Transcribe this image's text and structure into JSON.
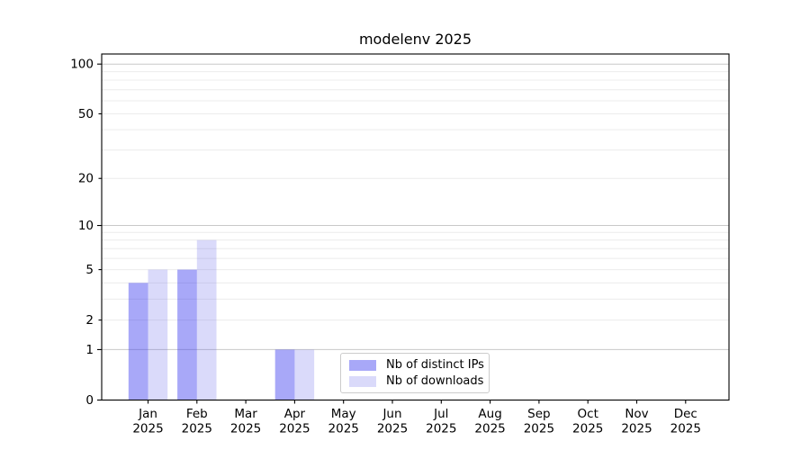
{
  "chart_data": {
    "type": "bar",
    "title": "modelenv 2025",
    "categories": [
      "Jan 2025",
      "Feb 2025",
      "Mar 2025",
      "Apr 2025",
      "May 2025",
      "Jun 2025",
      "Jul 2025",
      "Aug 2025",
      "Sep 2025",
      "Oct 2025",
      "Nov 2025",
      "Dec 2025"
    ],
    "series": [
      {
        "name": "Nb of distinct IPs",
        "color": "rgba(62,62,240,0.45)",
        "rendered_hex": "#a8a8f4",
        "values": [
          4,
          5,
          0,
          1,
          0,
          0,
          0,
          0,
          0,
          0,
          0,
          0
        ]
      },
      {
        "name": "Nb of downloads",
        "color": "rgba(85,85,230,0.22)",
        "rendered_hex": "#d9d9f8",
        "values": [
          5,
          8,
          0,
          1,
          0,
          0,
          0,
          0,
          0,
          0,
          0,
          0
        ]
      }
    ],
    "yscale": "log1p",
    "ylim": [
      0,
      115
    ],
    "ytick_values": [
      0,
      1,
      2,
      5,
      10,
      20,
      50,
      100
    ],
    "ytick_labels": [
      "0",
      "1",
      "2",
      "5",
      "10",
      "20",
      "50",
      "100"
    ],
    "major_grid_values": [
      1,
      10,
      100
    ],
    "minor_grid_values": [
      2,
      3,
      4,
      5,
      6,
      7,
      8,
      9,
      20,
      30,
      40,
      50,
      60,
      70,
      80,
      90
    ],
    "grid": true,
    "legend_position": "inside lower center-left",
    "colors": {
      "grid_major": "#c9c9c9",
      "grid_minor": "#ececec",
      "axis": "#000000",
      "text": "#000000",
      "legend_border": "#cccccc",
      "background": "#ffffff"
    }
  }
}
